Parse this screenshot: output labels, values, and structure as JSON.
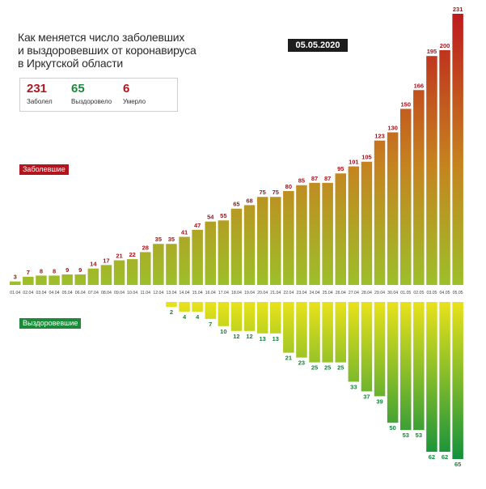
{
  "header": {
    "title_lines": [
      "Как меняется число заболевших",
      "и выздоровевших от коронавируса",
      "в Иркутской области"
    ],
    "date": "05.05.2020"
  },
  "stats": {
    "sick": {
      "value": "231",
      "label": "Заболел",
      "color": "#b3151e"
    },
    "recovered": {
      "value": "65",
      "label": "Выздоровело",
      "color": "#1c8a3a"
    },
    "died": {
      "value": "6",
      "label": "Умерло",
      "color": "#b3151e"
    }
  },
  "legend": {
    "sick_label": "Заболевшие",
    "recovered_label": "Выздоровевшие"
  },
  "chart_data": {
    "type": "bar",
    "categories": [
      "01.04",
      "02.04",
      "03.04",
      "04.04",
      "05.04",
      "06.04",
      "07.04",
      "08.04",
      "09.04",
      "10.04",
      "11.04",
      "12.04",
      "13.04",
      "14.04",
      "15.04",
      "16.04",
      "17.04",
      "18.04",
      "19.04",
      "20.04",
      "21.04",
      "22.04",
      "23.04",
      "24.04",
      "25.04",
      "26.04",
      "27.04",
      "28.04",
      "29.04",
      "30.04",
      "01.05",
      "02.05",
      "03.05",
      "04.05",
      "05.05"
    ],
    "series": [
      {
        "name": "Заболевшие",
        "direction": "up",
        "values": [
          3,
          7,
          8,
          8,
          9,
          9,
          14,
          17,
          21,
          22,
          28,
          35,
          35,
          41,
          47,
          54,
          55,
          65,
          68,
          75,
          75,
          80,
          85,
          87,
          87,
          95,
          101,
          105,
          123,
          130,
          150,
          166,
          195,
          200,
          231
        ],
        "colors": {
          "low": "#9dbf2a",
          "high": "#bd1a1e"
        }
      },
      {
        "name": "Выздоровевшие",
        "direction": "down",
        "values": [
          0,
          0,
          0,
          0,
          0,
          0,
          0,
          0,
          0,
          0,
          0,
          0,
          2,
          4,
          4,
          7,
          10,
          12,
          12,
          13,
          13,
          21,
          23,
          25,
          25,
          25,
          33,
          37,
          39,
          50,
          53,
          53,
          62,
          62,
          65
        ],
        "colors": {
          "low": "#e9e21a",
          "high": "#14913c"
        }
      }
    ],
    "label_colors": {
      "up": "#a3141c",
      "down": "#17823a"
    }
  }
}
